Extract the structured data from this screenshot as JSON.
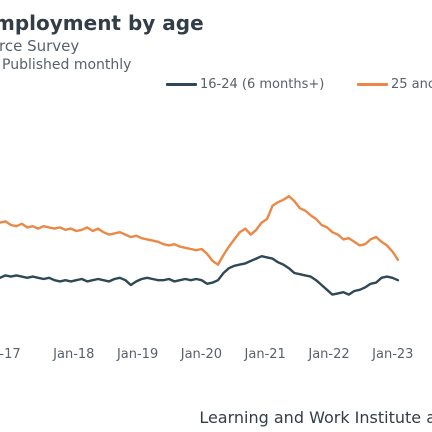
{
  "chart_data": {
    "type": "line",
    "title": "mployment by age",
    "subtitle": "rce Survey",
    "note": "Published monthly",
    "source": "Learning and Work Institute a",
    "x_ticks": [
      "-17",
      "Jan-18",
      "Jan-19",
      "Jan-20",
      "Jan-21",
      "Jan-22",
      "Jan-23",
      "."
    ],
    "series": [
      {
        "name": "16-24 (6 months+)",
        "color": "#2f4858",
        "values": [
          36,
          38,
          37,
          38,
          37,
          36,
          37,
          36,
          35,
          36,
          34,
          33,
          34,
          33,
          34,
          35,
          33,
          34,
          35,
          34,
          33,
          35,
          36,
          34,
          30,
          33,
          35,
          36,
          35,
          34,
          34,
          35,
          33,
          34,
          35,
          34,
          35,
          34,
          31,
          32,
          34,
          40,
          44,
          46,
          47,
          48,
          50,
          52,
          54,
          53,
          52,
          49,
          47,
          44,
          40,
          39,
          38,
          37,
          34,
          30,
          26,
          22,
          23,
          24,
          22,
          25,
          26,
          28,
          31,
          32,
          36,
          37,
          36,
          34
        ]
      },
      {
        "name": "25 anc",
        "color": "#ec8846",
        "values": [
          82,
          83,
          80,
          79,
          81,
          78,
          79,
          77,
          79,
          78,
          77,
          78,
          76,
          77,
          75,
          76,
          78,
          75,
          77,
          74,
          72,
          73,
          74,
          72,
          70,
          71,
          69,
          68,
          67,
          66,
          64,
          63,
          64,
          62,
          61,
          60,
          59,
          60,
          56,
          50,
          47,
          55,
          62,
          68,
          74,
          77,
          72,
          76,
          82,
          85,
          96,
          99,
          101,
          104,
          100,
          94,
          92,
          88,
          85,
          80,
          78,
          74,
          72,
          68,
          69,
          66,
          63,
          64,
          68,
          70,
          66,
          63,
          58,
          51
        ]
      }
    ],
    "legend_position": "top",
    "grid": false
  }
}
